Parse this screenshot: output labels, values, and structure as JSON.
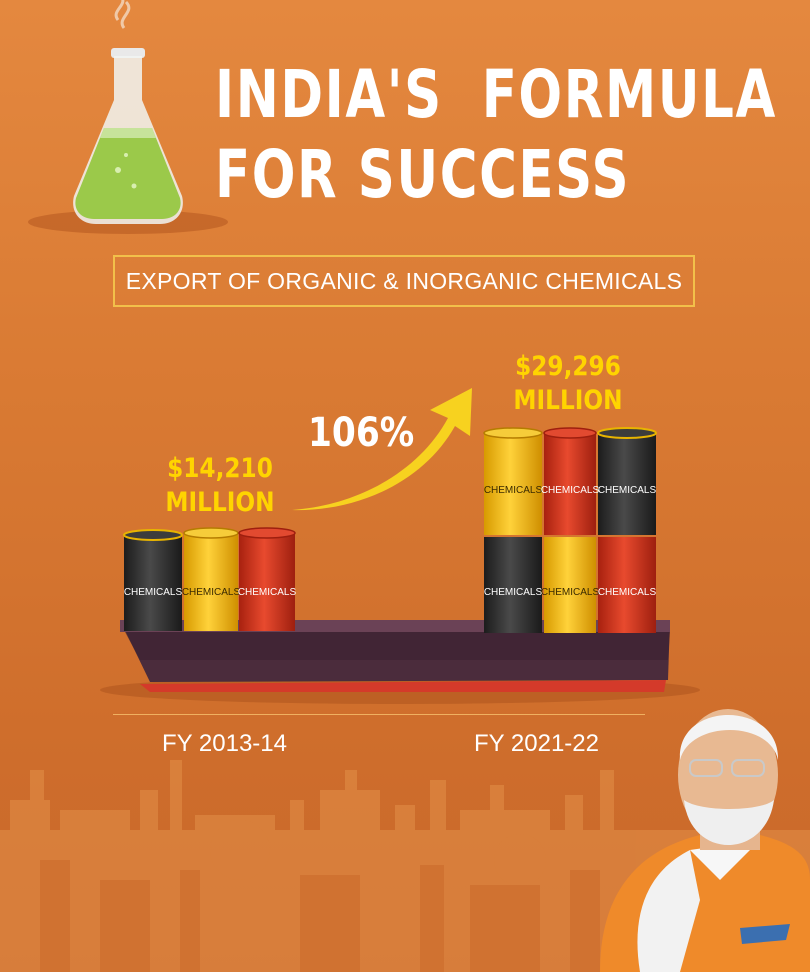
{
  "title": {
    "line1": "INDIA'S  FORMULA",
    "line2": "FOR SUCCESS"
  },
  "subtitle": "EXPORT OF ORGANIC & INORGANIC CHEMICALS",
  "growth_label": "106%",
  "barrel_label": "CHEMICALS",
  "periods": [
    {
      "label": "FY 2013-14",
      "value_line1": "$14,210",
      "value_line2": "MILLION",
      "value_musd": 14210
    },
    {
      "label": "FY 2021-22",
      "value_line1": "$29,296",
      "value_line2": "MILLION",
      "value_musd": 29296
    }
  ],
  "colors": {
    "background": "#dc7d36",
    "accent": "#ffd400",
    "barrel_black": "#2a2a2a",
    "barrel_yellow": "#f2b705",
    "barrel_red": "#d8341e",
    "ship_hull": "#4a2b3a"
  },
  "icons": [
    "flask-icon",
    "ship-icon",
    "growth-arrow-icon",
    "factory-skyline-icon",
    "person-photo"
  ]
}
